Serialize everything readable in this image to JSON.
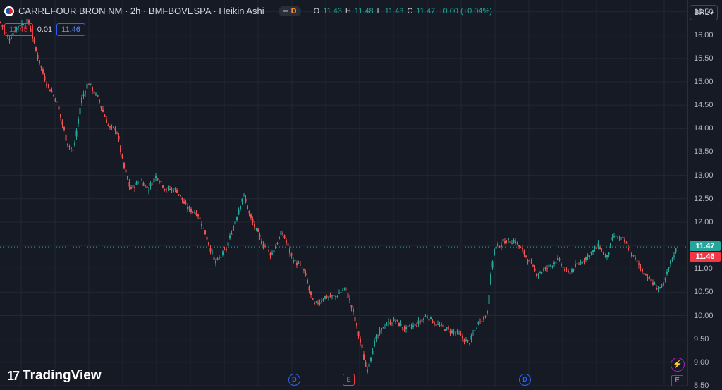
{
  "header": {
    "title": "CARREFOUR BRON NM · 2h · BMFBOVESPA · Heikin Ashi",
    "dividends_badge": "D",
    "ohlc": [
      {
        "key": "O",
        "value": "11.43"
      },
      {
        "key": "H",
        "value": "11.48"
      },
      {
        "key": "L",
        "value": "11.43"
      },
      {
        "key": "C",
        "value": "11.47"
      },
      {
        "key": "",
        "value": "+0.00 (+0.04%)"
      }
    ]
  },
  "trade": {
    "sell": "11.45",
    "spread": "0.01",
    "buy": "11.46"
  },
  "currency": "BRL",
  "axis": {
    "ticks": [
      "16.50",
      "16.00",
      "15.50",
      "15.00",
      "14.50",
      "14.00",
      "13.50",
      "13.00",
      "12.50",
      "12.00",
      "11.50",
      "11.00",
      "10.50",
      "10.00",
      "9.50",
      "9.00",
      "8.50"
    ],
    "last_price": "11.47",
    "bid_price": "11.46"
  },
  "events": [
    {
      "label": "D",
      "kind": "dividend"
    },
    {
      "label": "E",
      "kind": "earnings"
    },
    {
      "label": "D",
      "kind": "dividend"
    }
  ],
  "side_icons": {
    "top": "⚡",
    "bottom": "E"
  },
  "branding": {
    "text": "TradingView"
  },
  "colors": {
    "up": "#26a69a",
    "down": "#ef5350",
    "background": "#161a25",
    "grid": "#232734"
  },
  "chart_data": {
    "type": "candlestick",
    "series_style": "Heikin Ashi",
    "ylim": [
      8.5,
      16.75
    ],
    "y_ticks": [
      8.5,
      9.0,
      9.5,
      10.0,
      10.5,
      11.0,
      11.5,
      12.0,
      12.5,
      13.0,
      13.5,
      14.0,
      14.5,
      15.0,
      15.5,
      16.0,
      16.5
    ],
    "close_path_keypoints": [
      [
        0,
        16.3
      ],
      [
        12,
        15.9
      ],
      [
        25,
        16.2
      ],
      [
        40,
        16.3
      ],
      [
        52,
        15.6
      ],
      [
        65,
        15.0
      ],
      [
        80,
        14.6
      ],
      [
        95,
        13.7
      ],
      [
        104,
        13.5
      ],
      [
        115,
        14.6
      ],
      [
        125,
        15.0
      ],
      [
        140,
        14.6
      ],
      [
        155,
        14.0
      ],
      [
        165,
        14.0
      ],
      [
        175,
        13.2
      ],
      [
        185,
        12.7
      ],
      [
        200,
        12.9
      ],
      [
        210,
        12.7
      ],
      [
        222,
        13.0
      ],
      [
        235,
        12.7
      ],
      [
        250,
        12.7
      ],
      [
        265,
        12.3
      ],
      [
        280,
        12.2
      ],
      [
        295,
        11.6
      ],
      [
        305,
        11.1
      ],
      [
        320,
        11.4
      ],
      [
        335,
        12.1
      ],
      [
        345,
        12.6
      ],
      [
        355,
        12.1
      ],
      [
        370,
        11.6
      ],
      [
        385,
        11.3
      ],
      [
        400,
        11.8
      ],
      [
        415,
        11.2
      ],
      [
        430,
        11.0
      ],
      [
        445,
        10.2
      ],
      [
        460,
        10.4
      ],
      [
        475,
        10.4
      ],
      [
        490,
        10.6
      ],
      [
        500,
        10.1
      ],
      [
        510,
        9.5
      ],
      [
        520,
        8.8
      ],
      [
        530,
        9.4
      ],
      [
        545,
        9.8
      ],
      [
        560,
        9.9
      ],
      [
        575,
        9.7
      ],
      [
        590,
        9.8
      ],
      [
        605,
        10.0
      ],
      [
        620,
        9.8
      ],
      [
        635,
        9.7
      ],
      [
        650,
        9.6
      ],
      [
        665,
        9.4
      ],
      [
        680,
        9.9
      ],
      [
        690,
        10.0
      ],
      [
        700,
        11.4
      ],
      [
        715,
        11.6
      ],
      [
        730,
        11.6
      ],
      [
        745,
        11.3
      ],
      [
        760,
        10.9
      ],
      [
        775,
        11.0
      ],
      [
        790,
        11.2
      ],
      [
        805,
        10.9
      ],
      [
        820,
        11.1
      ],
      [
        835,
        11.3
      ],
      [
        850,
        11.5
      ],
      [
        860,
        11.2
      ],
      [
        870,
        11.7
      ],
      [
        885,
        11.6
      ],
      [
        900,
        11.2
      ],
      [
        915,
        10.9
      ],
      [
        930,
        10.6
      ],
      [
        940,
        10.6
      ],
      [
        950,
        11.1
      ],
      [
        960,
        11.47
      ]
    ]
  }
}
